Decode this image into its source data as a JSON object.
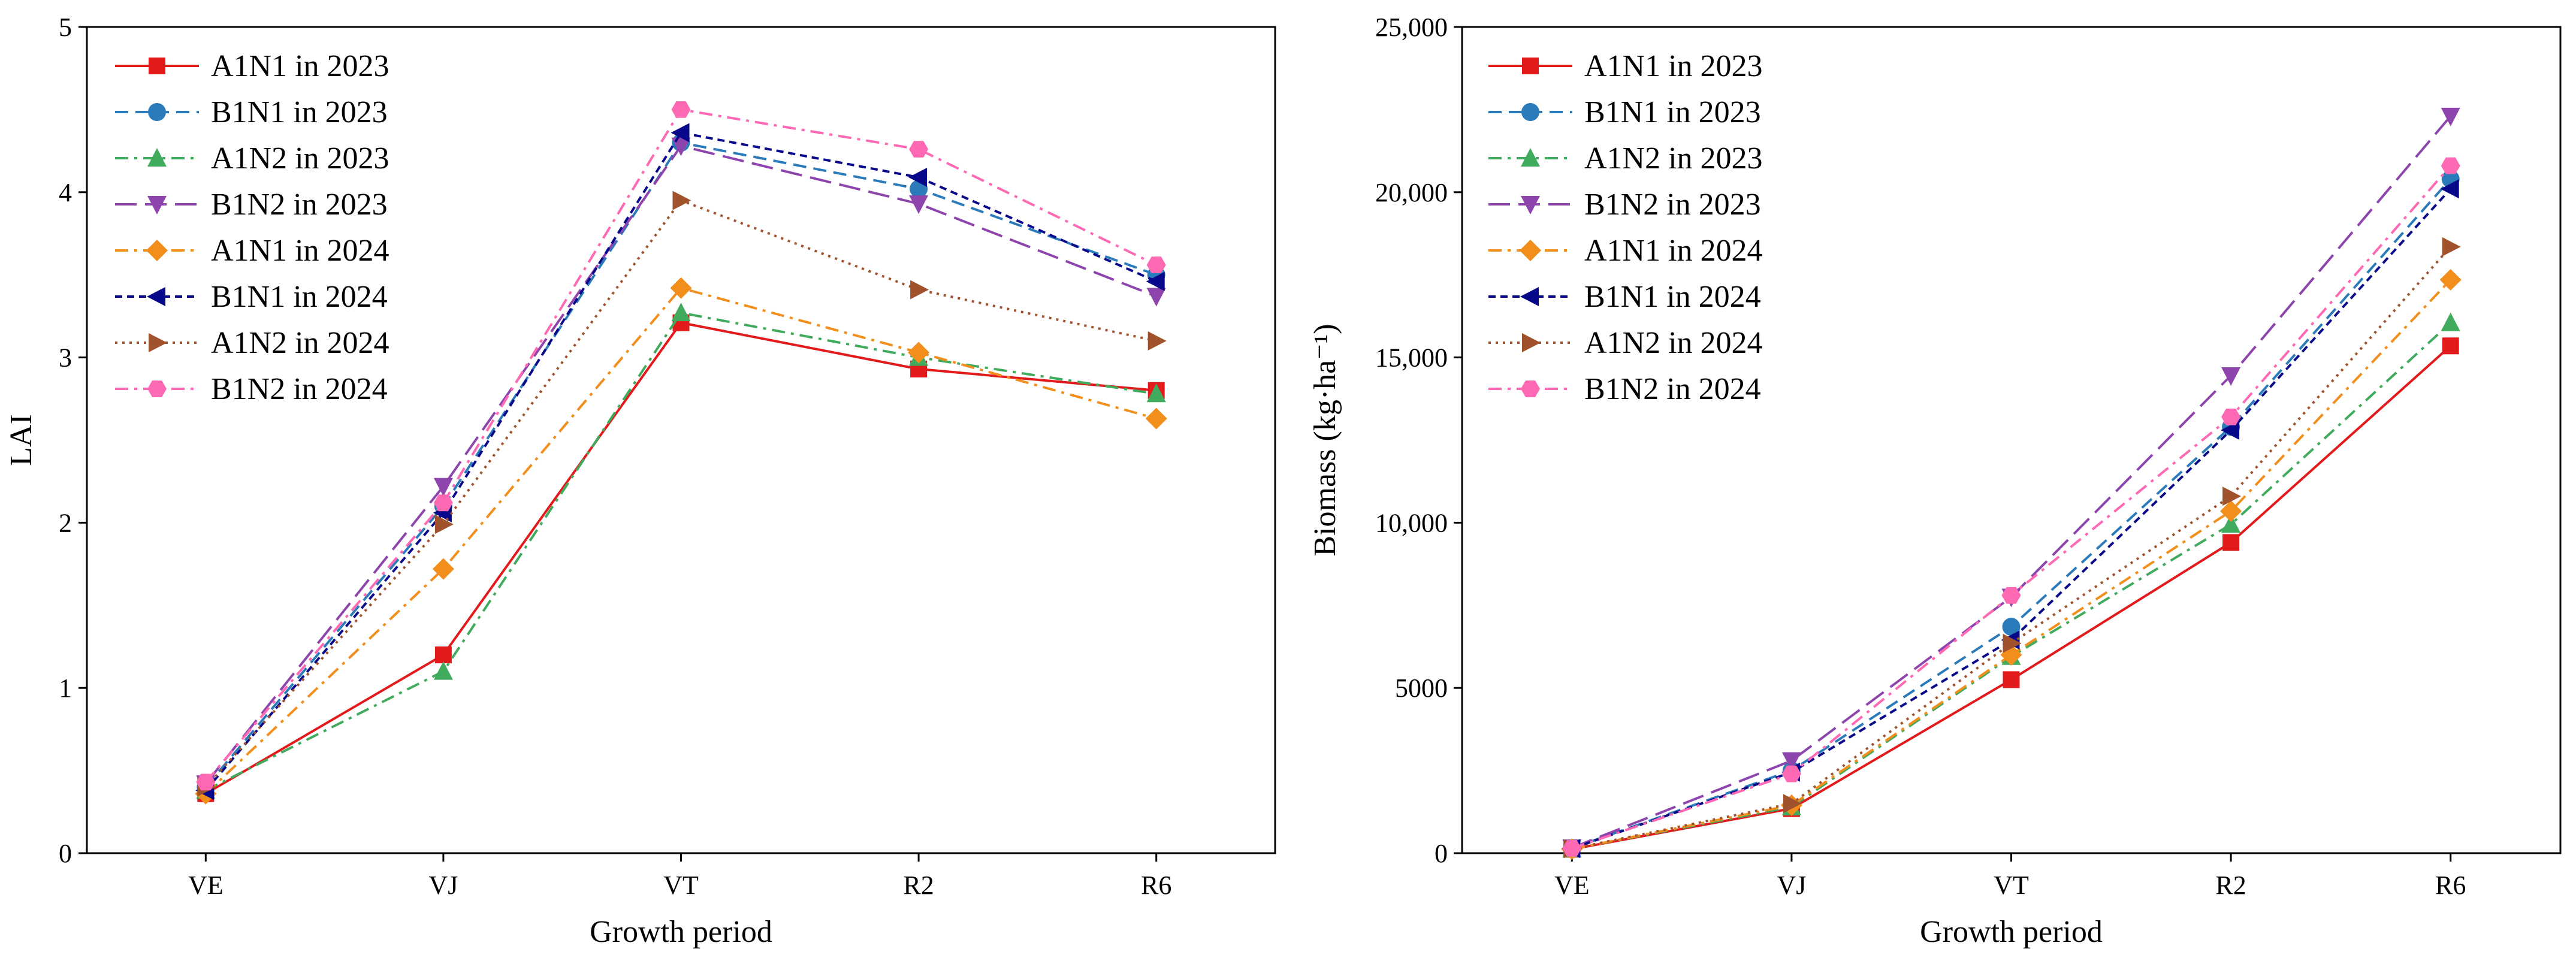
{
  "figure": {
    "panels": 2
  },
  "chart_data": [
    {
      "type": "line",
      "title": "",
      "xlabel": "Growth period",
      "ylabel": "LAI",
      "categories": [
        "VE",
        "VJ",
        "VT",
        "R2",
        "R6"
      ],
      "ylim": [
        0,
        5
      ],
      "yticks": [
        0,
        1,
        2,
        3,
        4,
        5
      ],
      "ytick_labels": [
        "0",
        "1",
        "2",
        "3",
        "4",
        "5"
      ],
      "legend_position": "top-left",
      "series": [
        {
          "name": "A1N1 in 2023",
          "color": "#e31a1c",
          "dash": "solid",
          "marker": "square",
          "values": [
            0.36,
            1.2,
            3.21,
            2.93,
            2.8
          ]
        },
        {
          "name": "B1N1 in 2023",
          "color": "#2b7bba",
          "dash": "dashed",
          "marker": "circle",
          "values": [
            0.4,
            2.1,
            4.3,
            4.02,
            3.5
          ]
        },
        {
          "name": "A1N2 in 2023",
          "color": "#41ab5d",
          "dash": "dashdot",
          "marker": "triangle-up",
          "values": [
            0.38,
            1.1,
            3.27,
            3.0,
            2.78
          ]
        },
        {
          "name": "B1N2 in 2023",
          "color": "#8e44ad",
          "dash": "longdash",
          "marker": "triangle-down",
          "values": [
            0.42,
            2.22,
            4.28,
            3.93,
            3.37
          ]
        },
        {
          "name": "A1N1 in 2024",
          "color": "#f28e1c",
          "dash": "dashdot",
          "marker": "diamond",
          "values": [
            0.36,
            1.72,
            3.42,
            3.03,
            2.63
          ]
        },
        {
          "name": "B1N1 in 2024",
          "color": "#08088a",
          "dash": "shortdash",
          "marker": "triangle-left",
          "values": [
            0.38,
            2.06,
            4.36,
            4.09,
            3.46
          ]
        },
        {
          "name": "A1N2 in 2024",
          "color": "#a0522d",
          "dash": "dotted",
          "marker": "triangle-right",
          "values": [
            0.4,
            1.99,
            3.95,
            3.41,
            3.1
          ]
        },
        {
          "name": "B1N2 in 2024",
          "color": "#ff69b4",
          "dash": "dashdot",
          "marker": "hexagon",
          "values": [
            0.43,
            2.12,
            4.5,
            4.26,
            3.56
          ]
        }
      ]
    },
    {
      "type": "line",
      "title": "",
      "xlabel": "Growth period",
      "ylabel": "Biomass (kg·ha⁻¹)",
      "categories": [
        "VE",
        "VJ",
        "VT",
        "R2",
        "R6"
      ],
      "ylim": [
        0,
        25000
      ],
      "yticks": [
        0,
        5000,
        10000,
        15000,
        20000,
        25000
      ],
      "ytick_labels": [
        "0",
        "5000",
        "10,000",
        "15,000",
        "20,000",
        "25,000"
      ],
      "legend_position": "top-left",
      "series": [
        {
          "name": "A1N1 in 2023",
          "color": "#e31a1c",
          "dash": "solid",
          "marker": "square",
          "values": [
            120,
            1350,
            5250,
            9400,
            15350
          ]
        },
        {
          "name": "B1N1 in 2023",
          "color": "#2b7bba",
          "dash": "dashed",
          "marker": "circle",
          "values": [
            150,
            2500,
            6850,
            12900,
            20400
          ]
        },
        {
          "name": "A1N2 in 2023",
          "color": "#41ab5d",
          "dash": "dashdot",
          "marker": "triangle-up",
          "values": [
            130,
            1400,
            5950,
            9950,
            16050
          ]
        },
        {
          "name": "B1N2 in 2023",
          "color": "#8e44ad",
          "dash": "longdash",
          "marker": "triangle-down",
          "values": [
            160,
            2800,
            7750,
            14450,
            22300
          ]
        },
        {
          "name": "A1N1 in 2024",
          "color": "#f28e1c",
          "dash": "dashdot",
          "marker": "diamond",
          "values": [
            125,
            1450,
            6000,
            10350,
            17350
          ]
        },
        {
          "name": "B1N1 in 2024",
          "color": "#08088a",
          "dash": "shortdash",
          "marker": "triangle-left",
          "values": [
            140,
            2450,
            6450,
            12800,
            20100
          ]
        },
        {
          "name": "A1N2 in 2024",
          "color": "#a0522d",
          "dash": "dotted",
          "marker": "triangle-right",
          "values": [
            135,
            1500,
            6350,
            10800,
            18350
          ]
        },
        {
          "name": "B1N2 in 2024",
          "color": "#ff69b4",
          "dash": "dashdot",
          "marker": "hexagon",
          "values": [
            145,
            2400,
            7800,
            13200,
            20800
          ]
        }
      ]
    }
  ]
}
